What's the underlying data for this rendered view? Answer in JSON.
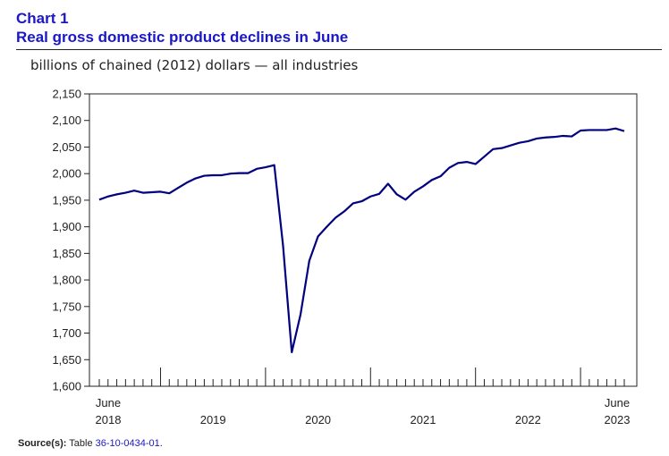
{
  "header": {
    "chart_number": "Chart 1",
    "title": "Real gross domestic product declines in June",
    "subtitle": "billions of chained (2012) dollars — all industries"
  },
  "source": {
    "label": "Source(s):",
    "prefix": "Table",
    "link_text": "36-10-0434-01",
    "suffix": "."
  },
  "colors": {
    "line": "#000080",
    "title": "#1a17c6",
    "link": "#1a17c6"
  },
  "chart_data": {
    "type": "line",
    "title": "Real gross domestic product declines in June",
    "ylabel": "billions of chained (2012) dollars — all industries",
    "ylim": [
      1600,
      2150
    ],
    "yticks": [
      1600,
      1650,
      1700,
      1750,
      1800,
      1850,
      1900,
      1950,
      2000,
      2050,
      2100,
      2150
    ],
    "ytick_labels": [
      "1,600",
      "1,650",
      "1,700",
      "1,750",
      "1,800",
      "1,850",
      "1,900",
      "1,950",
      "2,000",
      "2,050",
      "2,100",
      "2,150"
    ],
    "x_start": "June 2018",
    "x_end": "June 2023",
    "x_label_top": [
      "June",
      "",
      "",
      "",
      "",
      "June"
    ],
    "x_label_bottom": [
      "2018",
      "2019",
      "2020",
      "2021",
      "2022",
      "2023"
    ],
    "year_boundary_month_index": [
      7,
      19,
      31,
      43,
      55
    ],
    "grid": false,
    "series": [
      {
        "name": "All industries",
        "values": [
          1951,
          1957,
          1961,
          1964,
          1968,
          1964,
          1965,
          1966,
          1963,
          1973,
          1983,
          1991,
          1996,
          1997,
          1997,
          2000,
          2001,
          2001,
          2009,
          2012,
          2016,
          1865,
          1664,
          1735,
          1836,
          1882,
          1900,
          1917,
          1929,
          1944,
          1948,
          1957,
          1962,
          1981,
          1961,
          1951,
          1966,
          1976,
          1988,
          1995,
          2011,
          2020,
          2022,
          2018,
          2032,
          2046,
          2048,
          2053,
          2058,
          2061,
          2066,
          2068,
          2069,
          2071,
          2070,
          2081,
          2082,
          2082,
          2082,
          2085,
          2080
        ]
      }
    ]
  }
}
